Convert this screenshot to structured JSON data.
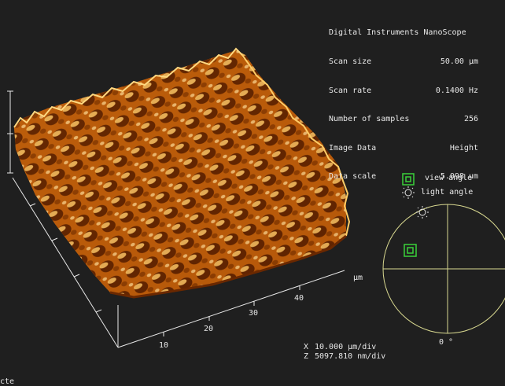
{
  "info": {
    "title": "Digital Instruments NanoScope",
    "rows": [
      {
        "label": "Scan size",
        "value": "50.00 µm"
      },
      {
        "label": "Scan rate",
        "value": "0.1400 Hz"
      },
      {
        "label": "Number of samples",
        "value": "256"
      },
      {
        "label": "Image Data",
        "value": "Height"
      },
      {
        "label": "Data scale",
        "value": "5.098 um"
      }
    ]
  },
  "legend": {
    "view_angle_label": "view angle",
    "light_angle_label": "light angle",
    "rotation_label": "0 °"
  },
  "axes": {
    "unit_label": "µm",
    "x_ticks": [
      "10",
      "20",
      "30",
      "40"
    ]
  },
  "scale": {
    "x_axis": "X",
    "x_value": "10.000 µm/div",
    "z_axis": "Z",
    "z_value": "5097.810 nm/div"
  },
  "status": {
    "text": "cte"
  },
  "colors": {
    "background": "#1f1f1f",
    "surface_dark": "#5a1e00",
    "surface_mid": "#c8640a",
    "surface_light": "#ffd27a",
    "circle": "#d8d890",
    "view_marker": "#3ad23a"
  },
  "icons": {
    "view_marker": "square-target-icon",
    "light_marker": "sun-icon"
  }
}
